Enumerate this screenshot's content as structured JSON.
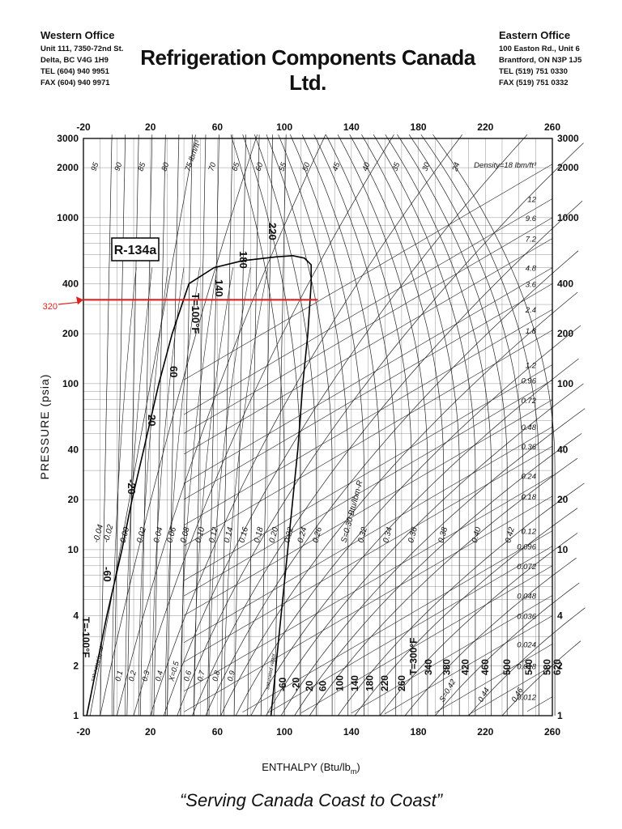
{
  "header": {
    "west": {
      "name": "Western Office",
      "lines": [
        "Unit 111, 7350-72nd St.",
        "Delta, BC V4G 1H9",
        "TEL (604) 940 9951",
        "FAX (604) 940 9971"
      ]
    },
    "company": "Refrigeration Components Canada Ltd.",
    "east": {
      "name": "Eastern Office",
      "lines": [
        "100 Easton Rd., Unit 6",
        "Brantford, ON N3P 1J5",
        "TEL (519) 751 0330",
        "FAX (519) 751 0332"
      ]
    }
  },
  "tagline": "“Serving Canada Coast to Coast”",
  "chart_data": {
    "type": "line",
    "title": "R-134a",
    "xlabel": "ENTHALPY (Btu/lb",
    "xlabel_sub": "m",
    "xlabel_end": ")",
    "ylabel": "PRESSURE (psia)",
    "xlim": [
      -20,
      260
    ],
    "ylim": [
      1,
      3000
    ],
    "yscale": "log",
    "x_ticks": [
      -20,
      20,
      60,
      100,
      140,
      180,
      220,
      260
    ],
    "y_ticks": [
      1,
      2,
      4,
      10,
      20,
      40,
      100,
      200,
      400,
      1000,
      2000,
      3000
    ],
    "grid": true,
    "saturation_dome": {
      "liquid": [
        [
          -18,
          1
        ],
        [
          -12,
          2
        ],
        [
          -6,
          4
        ],
        [
          3,
          10
        ],
        [
          9,
          20
        ],
        [
          16,
          40
        ],
        [
          25,
          100
        ],
        [
          33,
          200
        ],
        [
          43,
          400
        ],
        [
          58,
          500
        ],
        [
          75,
          550
        ],
        [
          95,
          580
        ]
      ],
      "vapor": [
        [
          95,
          580
        ],
        [
          105,
          590
        ],
        [
          112,
          570
        ],
        [
          116,
          520
        ],
        [
          116,
          400
        ],
        [
          114,
          200
        ],
        [
          111,
          100
        ],
        [
          108,
          40
        ],
        [
          105,
          20
        ],
        [
          102,
          10
        ],
        [
          98,
          4
        ],
        [
          95,
          2
        ],
        [
          92,
          1
        ]
      ]
    },
    "annotation": {
      "label": "320",
      "pressure_psia": 320,
      "enthalpy_start": -20,
      "enthalpy_end": 120,
      "color": "#e02020"
    },
    "density_labels": [
      "Density=18 lbm/ft³",
      "12",
      "9.6",
      "7.2",
      "4.8",
      "3.6",
      "2.4",
      "1.8",
      "1.2",
      "0.96",
      "0.72",
      "0.48",
      "0.36",
      "0.24",
      "0.18",
      "0.12",
      "0.096",
      "0.072",
      "0.048",
      "0.036",
      "0.024",
      "0.018",
      "0.012"
    ],
    "density_pressures": [
      2100,
      1300,
      1000,
      750,
      500,
      400,
      280,
      210,
      130,
      105,
      80,
      55,
      42,
      28,
      21,
      13,
      10.5,
      8,
      5.3,
      4,
      2.7,
      2,
      1.3
    ],
    "entropy_labels": [
      "-0.04",
      "-0.02",
      "0.00",
      "0.02",
      "0.04",
      "0.06",
      "0.08",
      "0.10",
      "0.12",
      "0.14",
      "0.16",
      "0.18",
      "0.20",
      "0.22",
      "0.24",
      "0.26",
      "S=0.30 Btu/lbm-R",
      "0.32",
      "0.34",
      "0.36",
      "0.38",
      "0.40",
      "0.42"
    ],
    "entropy_enthalpy": [
      -16,
      -10,
      0,
      10,
      20,
      28,
      36,
      45,
      53,
      62,
      71,
      80,
      89,
      98,
      106,
      115,
      132,
      142,
      157,
      172,
      190,
      210,
      230
    ],
    "quality_labels": [
      "0.1",
      "0.2",
      "0.3",
      "0.4",
      "X=0.5",
      "0.6",
      "0.7",
      "0.8",
      "0.9"
    ],
    "quality_enthalpy": [
      -3,
      5,
      13,
      21,
      29,
      38,
      46,
      55,
      64
    ],
    "top_temp_labels": [
      "95",
      "90",
      "85",
      "80",
      "75 lbm/ft³",
      "70",
      "65",
      "60",
      "55",
      "50",
      "45",
      "40",
      "35",
      "30",
      "24"
    ],
    "side_temp_labels": [
      "T=100°F",
      "140",
      "180",
      "220",
      "60",
      "20",
      "-20",
      "-60"
    ],
    "bottom_temp_labels": [
      "-60",
      "-20",
      "20",
      "60",
      "100",
      "140",
      "180",
      "220",
      "260",
      "T=300°F",
      "340",
      "380",
      "420",
      "460",
      "500",
      "540",
      "580",
      "620"
    ],
    "bottom_temp_enthalpy": [
      98,
      106,
      114,
      122,
      132,
      141,
      150,
      159,
      169,
      176,
      185,
      196,
      207,
      219,
      232,
      245,
      256,
      262
    ],
    "bottom_entropy_labels": [
      "S=0.42",
      "0.44",
      "0.46"
    ],
    "bottom_entropy_enthalpy": [
      195,
      218,
      238
    ],
    "saturated_labels": [
      "saturated liquid",
      "saturated vapor"
    ],
    "left_bottom_label": "T=-100°F"
  }
}
